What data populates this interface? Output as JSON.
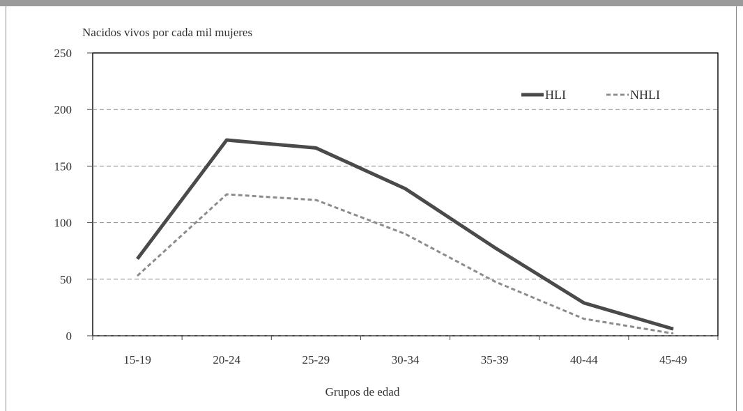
{
  "chart_data": {
    "type": "line",
    "ylabel": "Nacidos vivos por cada mil mujeres",
    "xlabel": "Grupos de edad",
    "categories": [
      "15-19",
      "20-24",
      "25-29",
      "30-34",
      "35-39",
      "40-44",
      "45-49"
    ],
    "ylim": [
      0,
      250
    ],
    "yticks": [
      0,
      50,
      100,
      150,
      200,
      250
    ],
    "grid": true,
    "legend_position": "top-right",
    "series": [
      {
        "name": "HLI",
        "values": [
          68,
          173,
          166,
          130,
          78,
          29,
          6
        ],
        "color": "#4a4a4a",
        "style": "solid"
      },
      {
        "name": "NHLI",
        "values": [
          53,
          125,
          120,
          90,
          48,
          15,
          2
        ],
        "color": "#8c8c8c",
        "style": "dashed"
      }
    ]
  }
}
